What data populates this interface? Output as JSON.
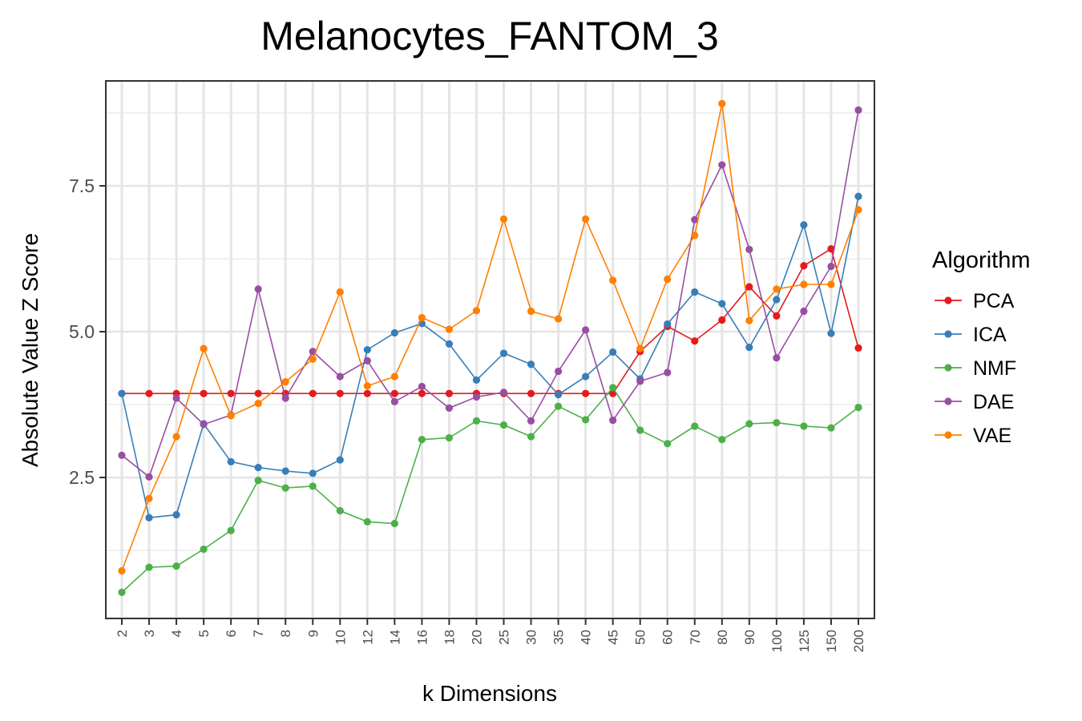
{
  "chart_data": {
    "type": "line",
    "title": "Melanocytes_FANTOM_3",
    "xlabel": "k Dimensions",
    "ylabel": "Absolute Value Z Score",
    "categories": [
      "2",
      "3",
      "4",
      "5",
      "6",
      "7",
      "8",
      "9",
      "10",
      "12",
      "14",
      "16",
      "18",
      "20",
      "25",
      "30",
      "35",
      "40",
      "45",
      "50",
      "60",
      "70",
      "80",
      "90",
      "100",
      "125",
      "150",
      "200"
    ],
    "y_ticks": [
      "2.5",
      "5.0",
      "7.5"
    ],
    "y_tick_values": [
      2.5,
      5.0,
      7.5
    ],
    "ylim": [
      0.3,
      9.3
    ],
    "grid": true,
    "legend_title": "Algorithm",
    "legend_position": "right",
    "series": [
      {
        "name": "PCA",
        "color": "#e41a1c",
        "values": [
          3.94,
          3.94,
          3.94,
          3.94,
          3.94,
          3.94,
          3.94,
          3.94,
          3.94,
          3.94,
          3.94,
          3.94,
          3.94,
          3.94,
          3.94,
          3.94,
          3.94,
          3.94,
          3.94,
          4.66,
          5.09,
          4.84,
          5.2,
          5.77,
          5.27,
          6.13,
          6.42,
          4.72
        ]
      },
      {
        "name": "ICA",
        "color": "#377eb8",
        "values": [
          3.94,
          1.81,
          1.86,
          3.42,
          2.77,
          2.67,
          2.61,
          2.57,
          2.8,
          4.69,
          4.98,
          5.14,
          4.79,
          4.17,
          4.63,
          4.44,
          3.92,
          4.23,
          4.65,
          4.19,
          5.13,
          5.68,
          5.48,
          4.73,
          5.55,
          6.83,
          4.97,
          7.32
        ]
      },
      {
        "name": "NMF",
        "color": "#4daf4a",
        "values": [
          0.53,
          0.96,
          0.98,
          1.27,
          1.59,
          2.45,
          2.32,
          2.35,
          1.93,
          1.74,
          1.71,
          3.15,
          3.18,
          3.47,
          3.4,
          3.2,
          3.72,
          3.49,
          4.04,
          3.31,
          3.08,
          3.38,
          3.15,
          3.42,
          3.44,
          3.38,
          3.35,
          3.7
        ]
      },
      {
        "name": "DAE",
        "color": "#984ea3",
        "values": [
          2.88,
          2.51,
          3.86,
          3.41,
          3.57,
          5.73,
          3.86,
          4.66,
          4.23,
          4.5,
          3.8,
          4.06,
          3.69,
          3.88,
          3.96,
          3.47,
          4.32,
          5.03,
          3.48,
          4.15,
          4.3,
          6.92,
          7.86,
          6.41,
          4.55,
          5.35,
          6.12,
          8.8
        ]
      },
      {
        "name": "VAE",
        "color": "#ff7f00",
        "values": [
          0.9,
          2.14,
          3.2,
          4.71,
          3.56,
          3.77,
          4.14,
          4.53,
          5.68,
          4.07,
          4.23,
          5.24,
          5.04,
          5.36,
          6.93,
          5.35,
          5.22,
          6.93,
          5.88,
          4.71,
          5.9,
          6.65,
          8.91,
          5.19,
          5.73,
          5.81,
          5.81,
          7.09
        ]
      }
    ]
  }
}
